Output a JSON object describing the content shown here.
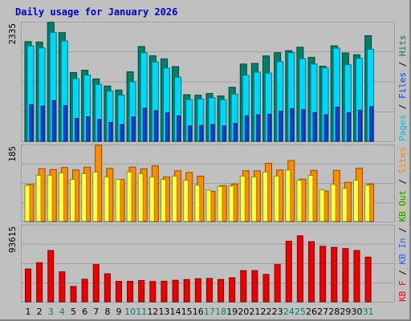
{
  "chart_data": [
    {
      "type": "bar",
      "title": "Daily usage for January 2026",
      "max_label": "2335",
      "side_legend": [
        {
          "text": "Pages",
          "color": "#00c0e0"
        },
        {
          "text": " / ",
          "color": "#000000"
        },
        {
          "text": "Files",
          "color": "#0040ff"
        },
        {
          "text": " / ",
          "color": "#000000"
        },
        {
          "text": "Hits",
          "color": "#008060"
        }
      ],
      "categories": [
        "1",
        "2",
        "3",
        "4",
        "5",
        "6",
        "7",
        "8",
        "9",
        "10",
        "11",
        "12",
        "13",
        "14",
        "15",
        "16",
        "17",
        "18",
        "19",
        "20",
        "21",
        "22",
        "23",
        "24",
        "25",
        "26",
        "27",
        "28",
        "29",
        "30",
        "31"
      ],
      "weekend_days": [
        "3",
        "4",
        "10",
        "11",
        "17",
        "18",
        "24",
        "25",
        "31"
      ],
      "ylim": [
        0,
        2335
      ],
      "series": [
        {
          "name": "Hits",
          "color": "#00806a",
          "values": [
            1958,
            1950,
            2335,
            2135,
            1350,
            1395,
            1225,
            1085,
            1006,
            1365,
            1862,
            1680,
            1620,
            1468,
            914,
            905,
            940,
            890,
            1060,
            1517,
            1530,
            1677,
            1740,
            1780,
            1848,
            1650,
            1475,
            1876,
            1735,
            1700,
            2075
          ]
        },
        {
          "name": "Files",
          "color": "#00d8f8",
          "values": [
            1875,
            1835,
            2140,
            1970,
            1230,
            1300,
            1118,
            985,
            905,
            1170,
            1740,
            1560,
            1440,
            1258,
            820,
            830,
            855,
            814,
            925,
            1296,
            1357,
            1340,
            1565,
            1742,
            1624,
            1517,
            1442,
            1830,
            1504,
            1630,
            1806
          ]
        },
        {
          "name": "Pages",
          "color": "#1040e0",
          "values": [
            720,
            690,
            800,
            700,
            450,
            480,
            430,
            370,
            330,
            480,
            650,
            600,
            560,
            500,
            300,
            310,
            330,
            300,
            350,
            500,
            520,
            530,
            590,
            640,
            620,
            560,
            520,
            670,
            560,
            610,
            680
          ]
        }
      ]
    },
    {
      "type": "bar",
      "max_label": "185",
      "side_legend": [
        {
          "text": "Visits",
          "color": "#e0e000"
        },
        {
          "text": " / ",
          "color": "#000000"
        },
        {
          "text": "Sites",
          "color": "#ff8000"
        }
      ],
      "ylim": [
        0,
        185
      ],
      "series": [
        {
          "name": "Visits",
          "color": "#ff8c00",
          "values": [
            90,
            128,
            126,
            131,
            125,
            132,
            185,
            129,
            102,
            132,
            128,
            135,
            108,
            123,
            119,
            110,
            73,
            87,
            91,
            123,
            123,
            141,
            125,
            148,
            103,
            124,
            74,
            124,
            95,
            129,
            91
          ]
        },
        {
          "name": "Sites",
          "color": "#ffff40",
          "values": [
            88,
            112,
            112,
            118,
            102,
            116,
            120,
            108,
            102,
            120,
            116,
            108,
            102,
            110,
            100,
            88,
            76,
            85,
            86,
            110,
            108,
            120,
            110,
            125,
            100,
            112,
            77,
            90,
            80,
            100,
            88
          ]
        }
      ]
    },
    {
      "type": "bar",
      "max_label": "93615",
      "side_legend": [
        {
          "text": "KB F",
          "color": "#ff0000"
        },
        {
          "text": " / ",
          "color": "#000000"
        },
        {
          "text": "KB In",
          "color": "#2060ff"
        },
        {
          "text": " / ",
          "color": "#000000"
        },
        {
          "text": "KB Out",
          "color": "#00a000"
        }
      ],
      "ylim": [
        0,
        93615
      ],
      "series": [
        {
          "name": "KB F",
          "color": "#ee0000",
          "values": [
            40200,
            48000,
            62900,
            36800,
            18800,
            27600,
            45600,
            34300,
            25100,
            25100,
            26100,
            24900,
            25200,
            26400,
            27300,
            28300,
            28700,
            27300,
            29500,
            38200,
            38200,
            33600,
            45700,
            74300,
            81000,
            73800,
            68100,
            66800,
            65300,
            63000,
            54800
          ]
        }
      ]
    }
  ]
}
